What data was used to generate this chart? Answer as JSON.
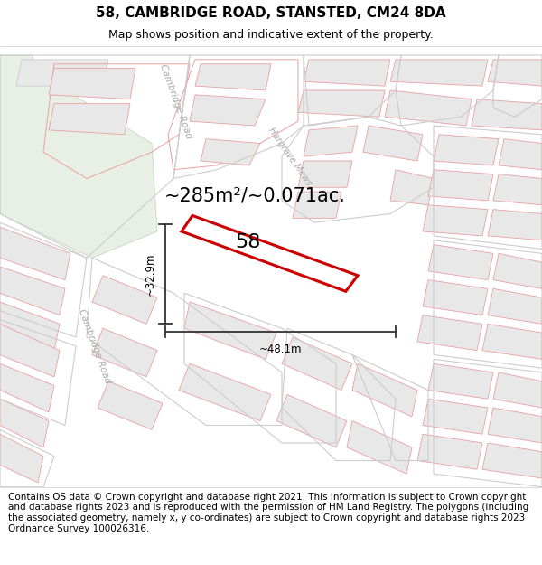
{
  "title": "58, CAMBRIDGE ROAD, STANSTED, CM24 8DA",
  "subtitle": "Map shows position and indicative extent of the property.",
  "footer": "Contains OS data © Crown copyright and database right 2021. This information is subject to Crown copyright and database rights 2023 and is reproduced with the permission of HM Land Registry. The polygons (including the associated geometry, namely x, y co-ordinates) are subject to Crown copyright and database rights 2023 Ordnance Survey 100026316.",
  "area_text": "~285m²/~0.071ac.",
  "property_number": "58",
  "dim_width": "~48.1m",
  "dim_height": "~32.9m",
  "title_fontsize": 11,
  "subtitle_fontsize": 9,
  "footer_fontsize": 7.5,
  "map_bg": "#f8f8f8",
  "building_fill": "#e8e8e8",
  "building_edge": "#e8a0a0",
  "building_edge_dark": "#cccccc",
  "green_fill": "#e8f0e6",
  "green_edge": "#c8d8c0",
  "highlight_edge": "#cc0000",
  "highlight_fill": "#ffffff",
  "road_label_color": "#aaaaaa",
  "dim_line_color": "#333333"
}
